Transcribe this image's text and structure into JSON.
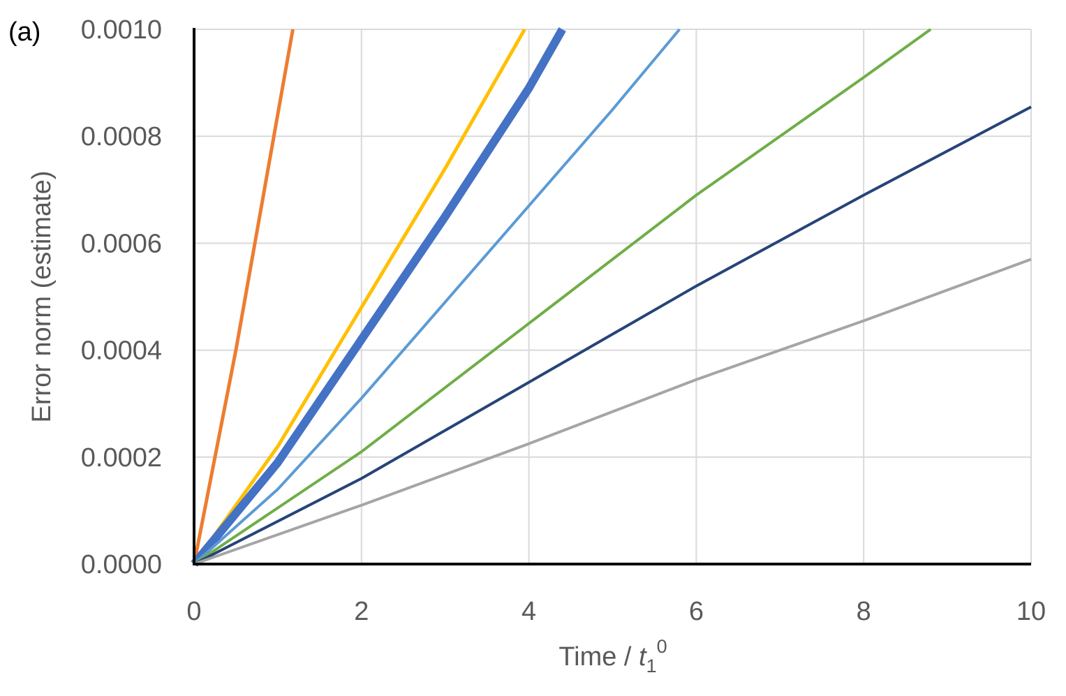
{
  "chart_data": {
    "type": "line",
    "panel_label": "(a)",
    "xlabel": {
      "prefix": "Time / ",
      "var": "t",
      "sub": "1",
      "sup": "0"
    },
    "ylabel": "Error norm (estimate)",
    "xlim": [
      0,
      10
    ],
    "ylim": [
      0,
      0.001
    ],
    "xticks": [
      "0",
      "2",
      "4",
      "6",
      "8",
      "10"
    ],
    "yticks": [
      "0.0000",
      "0.0002",
      "0.0004",
      "0.0006",
      "0.0008",
      "0.0010"
    ],
    "grid": true,
    "legend": "none",
    "series": [
      {
        "color": "#ED7D31",
        "width": 5,
        "x": [
          0,
          0.5,
          1.18
        ],
        "y": [
          0,
          0.0004,
          0.001
        ]
      },
      {
        "color": "#FFC000",
        "width": 5,
        "x": [
          0,
          1,
          2,
          3,
          3.95
        ],
        "y": [
          0,
          0.00022,
          0.00048,
          0.00074,
          0.001
        ]
      },
      {
        "color": "#4472C4",
        "width": 12,
        "x": [
          0,
          1,
          2,
          3,
          4,
          4.4
        ],
        "y": [
          0,
          0.00019,
          0.00042,
          0.00065,
          0.00089,
          0.001
        ]
      },
      {
        "color": "#5B9BD5",
        "width": 4,
        "x": [
          0,
          1,
          2,
          3,
          4,
          5,
          5.8
        ],
        "y": [
          0,
          0.00014,
          0.00031,
          0.00049,
          0.00067,
          0.00085,
          0.001
        ]
      },
      {
        "color": "#70AD47",
        "width": 4,
        "x": [
          0,
          2,
          4,
          6,
          8,
          8.8
        ],
        "y": [
          0,
          0.00021,
          0.00045,
          0.00069,
          0.00091,
          0.001
        ]
      },
      {
        "color": "#264478",
        "width": 4,
        "x": [
          0,
          2,
          4,
          6,
          8,
          10
        ],
        "y": [
          0,
          0.00016,
          0.00034,
          0.00052,
          0.00069,
          0.000855
        ]
      },
      {
        "color": "#A5A5A5",
        "width": 4,
        "x": [
          0,
          2,
          4,
          6,
          8,
          10
        ],
        "y": [
          0,
          0.00011,
          0.000225,
          0.000345,
          0.000455,
          0.00057
        ]
      }
    ]
  }
}
